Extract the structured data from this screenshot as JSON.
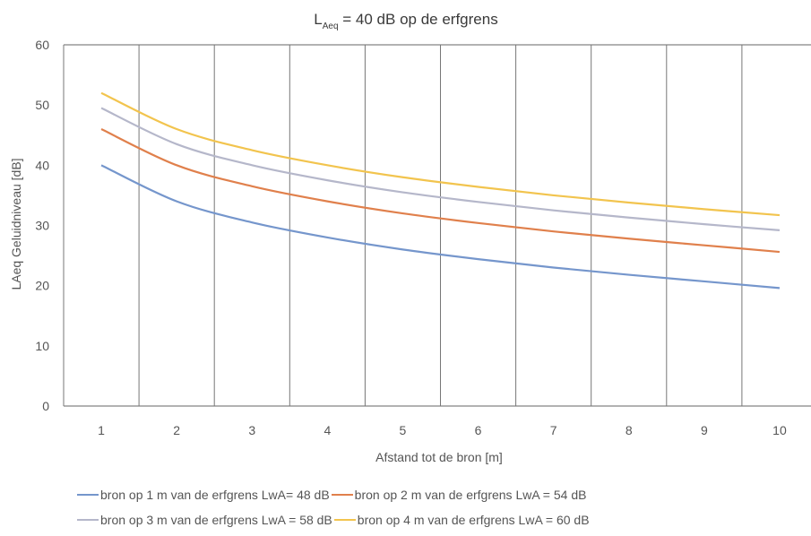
{
  "chart_data": {
    "type": "line",
    "title_main": "L",
    "title_sub": "Aeq",
    "title_rest": " = 40 dB op de erfgrens",
    "xlabel": "Afstand tot de bron [m]",
    "ylabel": "LAeq Geluidniveau  [dB]",
    "x": [
      1,
      2,
      3,
      4,
      5,
      6,
      7,
      8,
      9,
      10
    ],
    "xlim": [
      0.5,
      10.5
    ],
    "ylim": [
      0,
      60
    ],
    "yticks": [
      0,
      10,
      20,
      30,
      40,
      50,
      60
    ],
    "grid": "vertical",
    "legend_position": "bottom",
    "series": [
      {
        "name": "bron op 1 m van de erfgrens LwA= 48 dB",
        "color": "#7596cc",
        "values": [
          40,
          34,
          30.5,
          28,
          26,
          24.4,
          23,
          21.8,
          20.7,
          19.6
        ]
      },
      {
        "name": "bron op 2 m van de erfgrens LwA = 54 dB",
        "color": "#e0804c",
        "values": [
          46,
          40,
          36.5,
          34,
          32,
          30.4,
          29,
          27.8,
          26.7,
          25.6
        ]
      },
      {
        "name": "bron op 3 m van de erfgrens LwA = 58 dB",
        "color": "#b5b7ca",
        "values": [
          49.5,
          43.5,
          40,
          37.5,
          35.5,
          33.9,
          32.5,
          31.3,
          30.2,
          29.2
        ]
      },
      {
        "name": "bron op 4 m van de erfgrens LwA = 60 dB",
        "color": "#f2c44e",
        "values": [
          52,
          46,
          42.5,
          40,
          38,
          36.4,
          35,
          33.8,
          32.7,
          31.7
        ]
      }
    ]
  }
}
